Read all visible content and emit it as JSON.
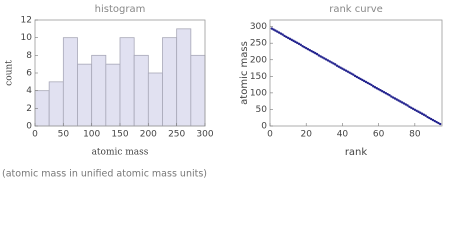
{
  "chart_data": [
    {
      "type": "histogram",
      "title": "histogram",
      "xlabel": "atomic mass",
      "ylabel": "count",
      "bins": [
        0,
        25,
        50,
        75,
        100,
        125,
        150,
        175,
        200,
        225,
        250,
        275,
        300
      ],
      "values": [
        4,
        5,
        10,
        7,
        8,
        7,
        10,
        8,
        6,
        10,
        11,
        8
      ],
      "color": "#e1e1f1",
      "edge_color": "#a8a8b8",
      "xlim": [
        0,
        300
      ],
      "xticks": [
        0,
        50,
        100,
        150,
        200,
        250,
        300
      ],
      "ylim": [
        0,
        12
      ],
      "yticks": [
        0,
        2,
        4,
        6,
        8,
        10,
        12
      ]
    },
    {
      "type": "scatter",
      "title": "rank curve",
      "xlabel": "rank",
      "ylabel": "atomic mass",
      "color": "#23238e",
      "x": [
        1,
        2,
        3,
        4,
        5,
        6,
        7,
        8,
        9,
        10,
        11,
        12,
        13,
        14,
        15,
        16,
        17,
        18,
        19,
        20,
        21,
        22,
        23,
        24,
        25,
        26,
        27,
        28,
        29,
        30,
        31,
        32,
        33,
        34,
        35,
        36,
        37,
        38,
        39,
        40,
        41,
        42,
        43,
        44,
        45,
        46,
        47,
        48,
        49,
        50,
        51,
        52,
        53,
        54,
        55,
        56,
        57,
        58,
        59,
        60,
        61,
        62,
        63,
        64,
        65,
        66,
        67,
        68,
        69,
        70,
        71,
        72,
        73,
        74,
        75,
        76,
        77,
        78,
        79,
        80,
        81,
        82,
        83,
        84,
        85,
        86,
        87,
        88,
        89,
        90,
        91,
        92,
        93,
        94
      ],
      "values": [
        294,
        291,
        288,
        285,
        282,
        279,
        276,
        272,
        269,
        266,
        263,
        260,
        257,
        254,
        251,
        248,
        245,
        241,
        238,
        235,
        232,
        229,
        226,
        223,
        220,
        217,
        213,
        210,
        207,
        204,
        201,
        198,
        195,
        192,
        189,
        186,
        182,
        179,
        176,
        173,
        170,
        167,
        164,
        161,
        158,
        155,
        151,
        148,
        145,
        142,
        139,
        136,
        133,
        130,
        127,
        124,
        120,
        117,
        114,
        111,
        108,
        105,
        102,
        99,
        96,
        93,
        89,
        86,
        83,
        80,
        77,
        74,
        71,
        68,
        65,
        62,
        58,
        55,
        52,
        49,
        46,
        43,
        40,
        37,
        34,
        31,
        27,
        24,
        21,
        18,
        15,
        12,
        9,
        6
      ],
      "xlim": [
        0,
        95
      ],
      "xticks": [
        0,
        20,
        40,
        60,
        80
      ],
      "ylim": [
        0,
        320
      ],
      "yticks": [
        0,
        50,
        100,
        150,
        200,
        250,
        300
      ]
    }
  ],
  "note": "(atomic mass in unified atomic mass units)"
}
